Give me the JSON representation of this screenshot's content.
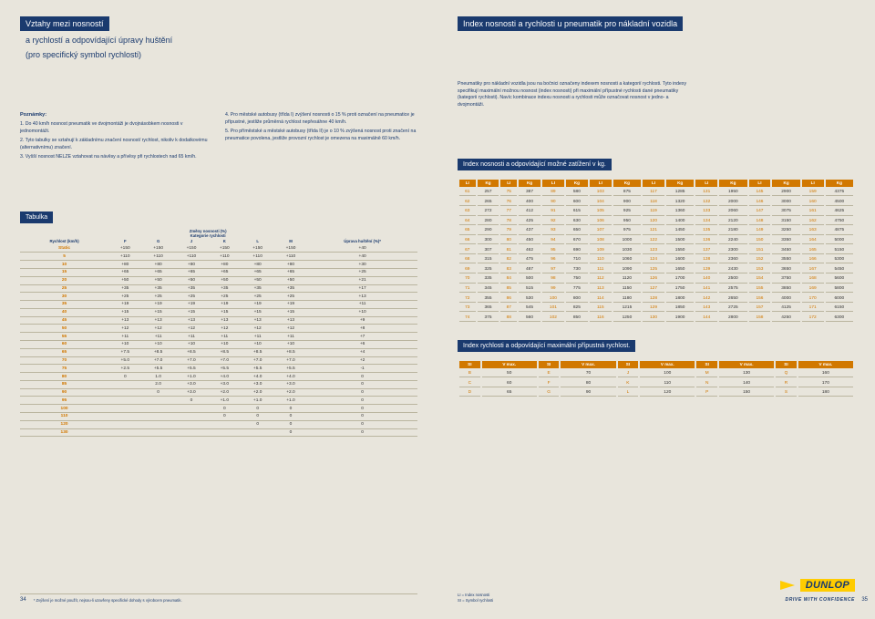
{
  "left": {
    "title": "Vztahy mezi nosností",
    "subtitle1": "a rychlostí a odpovídající úpravy huštění",
    "subtitle2": "(pro specifický symbol rychlosti)",
    "notesTitle": "Poznámky:",
    "notes": [
      "1. Do 40 km/h nosnost pneumatik ve dvojmontáži je dvojnásobkem nosnosti v jednomontáži.",
      "2. Tyto tabulky se vztahují k základnímu značení nosnost/ rychlost, nikoliv k dodatkovému (alternativnímu) značení.",
      "3. Vyšší nosnost NELZE vztahovat na návěsy a přívěsy při rychlostech nad 65 km/h.",
      "4. Pro městské autobusy (třída I) zvýšení nosnosti o 15 % proti označení na pneumatice je přípustné, jestliže průměrná rychlost nepřesáhne 40 km/h.",
      "5. Pro příměstské a městské autobusy (třída II) je o 10 % zvýšená nosnost proti značení na pneumatice povolena, jestliže provozní rychlost je omezena na maximálně 60 km/h."
    ],
    "tableTitle": "Tabulka",
    "tableHead1": "Změny nosnosti (%)",
    "tableHead2": "Kategorie rychlosti",
    "colSpeed": "Rychlost (km/h)",
    "cols": [
      "F",
      "G",
      "J",
      "K",
      "L",
      "M"
    ],
    "colAdj": "Úprava huštění (%)*",
    "rows": [
      [
        "Static",
        "+150",
        "+150",
        "+150",
        "+150",
        "+150",
        "+150",
        "+40"
      ],
      [
        "5",
        "+110",
        "+110",
        "+110",
        "+110",
        "+110",
        "+110",
        "+40"
      ],
      [
        "10",
        "+80",
        "+80",
        "+80",
        "+80",
        "+80",
        "+80",
        "+30"
      ],
      [
        "15",
        "+65",
        "+65",
        "+65",
        "+65",
        "+65",
        "+65",
        "+25"
      ],
      [
        "20",
        "+50",
        "+50",
        "+50",
        "+50",
        "+50",
        "+50",
        "+21"
      ],
      [
        "25",
        "+35",
        "+35",
        "+35",
        "+35",
        "+35",
        "+35",
        "+17"
      ],
      [
        "30",
        "+25",
        "+25",
        "+25",
        "+25",
        "+25",
        "+25",
        "+13"
      ],
      [
        "35",
        "+19",
        "+19",
        "+19",
        "+19",
        "+19",
        "+19",
        "+11"
      ],
      [
        "40",
        "+15",
        "+15",
        "+15",
        "+15",
        "+15",
        "+15",
        "+10"
      ],
      [
        "45",
        "+13",
        "+13",
        "+13",
        "+13",
        "+13",
        "+13",
        "+9"
      ],
      [
        "50",
        "+12",
        "+12",
        "+12",
        "+12",
        "+12",
        "+12",
        "+8"
      ],
      [
        "55",
        "+11",
        "+11",
        "+11",
        "+11",
        "+11",
        "+11",
        "+7"
      ],
      [
        "60",
        "+10",
        "+10",
        "+10",
        "+10",
        "+10",
        "+10",
        "+6"
      ],
      [
        "65",
        "+7.5",
        "+8.5",
        "+8.5",
        "+8.5",
        "+8.5",
        "+8.5",
        "+4"
      ],
      [
        "70",
        "+5.0",
        "+7.0",
        "+7.0",
        "+7.0",
        "+7.0",
        "+7.0",
        "+2"
      ],
      [
        "75",
        "+2.5",
        "+5.5",
        "+5.5",
        "+5.5",
        "+5.5",
        "+5.5",
        "-1"
      ],
      [
        "80",
        "0",
        "1.0",
        "+1.0",
        "+4.0",
        "+4.0",
        "+4.0",
        "0"
      ],
      [
        "85",
        "",
        "2.0",
        "+3.0",
        "+3.0",
        "+3.0",
        "+3.0",
        "0"
      ],
      [
        "90",
        "",
        "0",
        "+3.0",
        "+2.0",
        "+2.0",
        "+2.0",
        "0"
      ],
      [
        "95",
        "",
        "",
        "0",
        "+1.0",
        "+1.0",
        "+1.0",
        "0"
      ],
      [
        "100",
        "",
        "",
        "",
        "0",
        "0",
        "0",
        "0"
      ],
      [
        "110",
        "",
        "",
        "",
        "0",
        "0",
        "0",
        "0"
      ],
      [
        "120",
        "",
        "",
        "",
        "",
        "0",
        "0",
        "0"
      ],
      [
        "130",
        "",
        "",
        "",
        "",
        "",
        "0",
        "0"
      ]
    ],
    "footnote": "* Zvýšení je možné použít, nejsou-li uzavřeny specifické dohody s výrobcem pneumatik.",
    "pageNum": "34"
  },
  "right": {
    "title": "Index nosnosti a rychlosti u pneumatik pro nákladní vozidla",
    "intro": "Pneumatiky pro nákladní vozidla jsou na bočnici označeny indexem nosnosti a kategorií rychlosti. Tyto indexy specifikují maximální možnou nosnost (index nosnosti) při maximální přípustné rychlosti dané pneumatiky (kategorii rychlosti). Navíc kombinace indexu nosnosti a rychlosti může označovat nosnost v jedno- a dvojmontáži.",
    "liTitle": "Index nosnosti a odpovídající možné zatížení v kg.",
    "liHead": [
      "LI",
      "Kg",
      "LI",
      "Kg",
      "LI",
      "Kg",
      "LI",
      "Kg",
      "LI",
      "Kg",
      "LI",
      "Kg",
      "LI",
      "Kg",
      "LI",
      "Kg"
    ],
    "liRows": [
      [
        "61",
        "257",
        "75",
        "387",
        "89",
        "580",
        "103",
        "875",
        "117",
        "1285",
        "131",
        "1950",
        "145",
        "2900",
        "159",
        "4375"
      ],
      [
        "62",
        "265",
        "76",
        "400",
        "90",
        "600",
        "104",
        "900",
        "118",
        "1320",
        "132",
        "2000",
        "146",
        "3000",
        "160",
        "4500"
      ],
      [
        "63",
        "272",
        "77",
        "412",
        "91",
        "615",
        "105",
        "925",
        "119",
        "1360",
        "133",
        "2060",
        "147",
        "3075",
        "161",
        "4625"
      ],
      [
        "64",
        "280",
        "78",
        "425",
        "92",
        "630",
        "106",
        "950",
        "120",
        "1400",
        "134",
        "2120",
        "148",
        "3150",
        "162",
        "4750"
      ],
      [
        "65",
        "290",
        "79",
        "437",
        "93",
        "650",
        "107",
        "975",
        "121",
        "1450",
        "135",
        "2180",
        "149",
        "3250",
        "163",
        "4875"
      ],
      [
        "66",
        "300",
        "80",
        "450",
        "94",
        "670",
        "108",
        "1000",
        "122",
        "1500",
        "136",
        "2240",
        "150",
        "3350",
        "164",
        "5000"
      ],
      [
        "67",
        "307",
        "81",
        "462",
        "95",
        "690",
        "109",
        "1030",
        "123",
        "1550",
        "137",
        "2300",
        "151",
        "3450",
        "165",
        "5150"
      ],
      [
        "68",
        "315",
        "82",
        "475",
        "96",
        "710",
        "110",
        "1060",
        "124",
        "1600",
        "138",
        "2360",
        "152",
        "3550",
        "166",
        "5300"
      ],
      [
        "69",
        "325",
        "83",
        "487",
        "97",
        "730",
        "111",
        "1090",
        "125",
        "1650",
        "139",
        "2430",
        "153",
        "3650",
        "167",
        "5450"
      ],
      [
        "70",
        "335",
        "84",
        "500",
        "98",
        "750",
        "112",
        "1120",
        "126",
        "1700",
        "140",
        "2500",
        "154",
        "3750",
        "168",
        "5600"
      ],
      [
        "71",
        "345",
        "85",
        "515",
        "99",
        "775",
        "113",
        "1150",
        "127",
        "1750",
        "141",
        "2575",
        "155",
        "3850",
        "169",
        "5800"
      ],
      [
        "72",
        "355",
        "86",
        "530",
        "100",
        "800",
        "114",
        "1180",
        "128",
        "1800",
        "142",
        "2650",
        "156",
        "4000",
        "170",
        "6000"
      ],
      [
        "73",
        "365",
        "87",
        "545",
        "101",
        "825",
        "115",
        "1215",
        "129",
        "1850",
        "143",
        "2725",
        "157",
        "4125",
        "171",
        "6150"
      ],
      [
        "74",
        "375",
        "88",
        "560",
        "102",
        "850",
        "116",
        "1250",
        "130",
        "1900",
        "144",
        "2800",
        "158",
        "4250",
        "172",
        "6300"
      ]
    ],
    "siTitle": "Index rychlosti a odpovídající maximální přípustná rychlost.",
    "siHead": [
      "SI",
      "V max.",
      "SI",
      "V max.",
      "SI",
      "V max.",
      "SI",
      "V max.",
      "SI",
      "V max."
    ],
    "siRows": [
      [
        "B",
        "50",
        "E",
        "70",
        "J",
        "100",
        "M",
        "130",
        "Q",
        "160"
      ],
      [
        "C",
        "60",
        "F",
        "80",
        "K",
        "110",
        "N",
        "140",
        "R",
        "170"
      ],
      [
        "D",
        "65",
        "G",
        "90",
        "L",
        "120",
        "P",
        "150",
        "S",
        "180"
      ]
    ],
    "brand": "DUNLOP",
    "tagline": "DRIVE WITH CONFIDENCE",
    "legend1": "LI = Index nosnosti",
    "legend2": "SI = Symbol rychlosti",
    "pageNum": "35"
  }
}
